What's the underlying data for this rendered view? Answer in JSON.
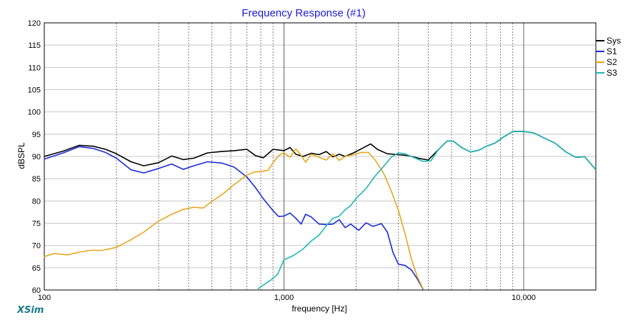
{
  "brand": "XSim",
  "chart_data": {
    "type": "line",
    "title": "Frequency Response (#1)",
    "xlabel": "frequency [Hz]",
    "ylabel": "dBSPL",
    "xscale": "log",
    "xlim": [
      100,
      20000
    ],
    "ylim": [
      60,
      120
    ],
    "yticks": [
      60,
      65,
      70,
      75,
      80,
      85,
      90,
      95,
      100,
      105,
      110,
      115,
      120
    ],
    "xtick_labels": [
      {
        "value": 100,
        "label": "100"
      },
      {
        "value": 1000,
        "label": "1,000"
      },
      {
        "value": 10000,
        "label": "10,000"
      }
    ],
    "grid": true,
    "legend_position": "right",
    "series": [
      {
        "name": "Sys",
        "color": "#000000",
        "points": [
          [
            100,
            90.0
          ],
          [
            120,
            91.2
          ],
          [
            140,
            92.5
          ],
          [
            160,
            92.3
          ],
          [
            180,
            91.6
          ],
          [
            200,
            90.6
          ],
          [
            230,
            88.8
          ],
          [
            260,
            87.9
          ],
          [
            300,
            88.6
          ],
          [
            340,
            90.1
          ],
          [
            380,
            89.3
          ],
          [
            420,
            89.6
          ],
          [
            480,
            90.8
          ],
          [
            550,
            91.1
          ],
          [
            620,
            91.3
          ],
          [
            700,
            91.6
          ],
          [
            760,
            90.2
          ],
          [
            820,
            89.7
          ],
          [
            900,
            91.6
          ],
          [
            1000,
            91.3
          ],
          [
            1060,
            92.0
          ],
          [
            1120,
            90.5
          ],
          [
            1200,
            90.0
          ],
          [
            1300,
            90.7
          ],
          [
            1400,
            90.4
          ],
          [
            1500,
            91.1
          ],
          [
            1600,
            89.9
          ],
          [
            1700,
            90.5
          ],
          [
            1800,
            90.0
          ],
          [
            1950,
            90.8
          ],
          [
            2100,
            91.7
          ],
          [
            2300,
            92.8
          ],
          [
            2450,
            91.6
          ],
          [
            2700,
            90.6
          ],
          [
            3000,
            90.4
          ],
          [
            3300,
            90.2
          ],
          [
            3700,
            89.5
          ],
          [
            4000,
            89.2
          ],
          [
            4400,
            91.5
          ],
          [
            4800,
            93.5
          ],
          [
            5100,
            93.4
          ],
          [
            5500,
            92.0
          ],
          [
            6000,
            91.0
          ],
          [
            6500,
            91.4
          ],
          [
            7000,
            92.3
          ],
          [
            7600,
            93.0
          ],
          [
            8200,
            94.3
          ],
          [
            9000,
            95.6
          ],
          [
            10000,
            95.6
          ],
          [
            11000,
            95.3
          ],
          [
            12000,
            94.3
          ],
          [
            13500,
            93.0
          ],
          [
            15000,
            91.0
          ],
          [
            16500,
            89.8
          ],
          [
            18000,
            89.9
          ],
          [
            20000,
            87.0
          ]
        ]
      },
      {
        "name": "S1",
        "color": "#1a2ad8",
        "points": [
          [
            100,
            89.4
          ],
          [
            120,
            90.8
          ],
          [
            140,
            92.2
          ],
          [
            160,
            91.8
          ],
          [
            180,
            90.9
          ],
          [
            200,
            89.6
          ],
          [
            230,
            87.0
          ],
          [
            260,
            86.3
          ],
          [
            300,
            87.3
          ],
          [
            340,
            88.3
          ],
          [
            380,
            87.1
          ],
          [
            420,
            87.9
          ],
          [
            480,
            88.8
          ],
          [
            550,
            88.5
          ],
          [
            620,
            87.6
          ],
          [
            700,
            85.4
          ],
          [
            760,
            83.0
          ],
          [
            820,
            80.5
          ],
          [
            900,
            77.8
          ],
          [
            950,
            76.5
          ],
          [
            1000,
            76.6
          ],
          [
            1060,
            77.3
          ],
          [
            1120,
            76.1
          ],
          [
            1180,
            74.8
          ],
          [
            1230,
            77.0
          ],
          [
            1300,
            76.4
          ],
          [
            1400,
            74.8
          ],
          [
            1500,
            74.7
          ],
          [
            1600,
            74.8
          ],
          [
            1700,
            75.8
          ],
          [
            1800,
            74.0
          ],
          [
            1900,
            74.8
          ],
          [
            2050,
            73.4
          ],
          [
            2200,
            75.1
          ],
          [
            2350,
            74.3
          ],
          [
            2550,
            74.9
          ],
          [
            2700,
            73.0
          ],
          [
            2850,
            68.4
          ],
          [
            3000,
            65.8
          ],
          [
            3200,
            65.5
          ],
          [
            3400,
            64.5
          ],
          [
            3600,
            62.5
          ],
          [
            3800,
            60.2
          ]
        ]
      },
      {
        "name": "S2",
        "color": "#e6a71c",
        "points": [
          [
            100,
            67.5
          ],
          [
            110,
            68.2
          ],
          [
            125,
            67.9
          ],
          [
            140,
            68.5
          ],
          [
            155,
            68.9
          ],
          [
            175,
            68.9
          ],
          [
            200,
            69.6
          ],
          [
            230,
            71.3
          ],
          [
            260,
            73.0
          ],
          [
            300,
            75.5
          ],
          [
            340,
            77.0
          ],
          [
            380,
            78.1
          ],
          [
            420,
            78.6
          ],
          [
            460,
            78.4
          ],
          [
            500,
            79.9
          ],
          [
            560,
            81.7
          ],
          [
            620,
            83.7
          ],
          [
            700,
            85.8
          ],
          [
            750,
            86.5
          ],
          [
            800,
            86.6
          ],
          [
            860,
            86.9
          ],
          [
            900,
            88.6
          ],
          [
            950,
            90.2
          ],
          [
            1000,
            90.8
          ],
          [
            1060,
            89.8
          ],
          [
            1120,
            91.7
          ],
          [
            1180,
            90.2
          ],
          [
            1230,
            88.7
          ],
          [
            1300,
            90.5
          ],
          [
            1400,
            89.8
          ],
          [
            1500,
            89.2
          ],
          [
            1600,
            90.6
          ],
          [
            1700,
            89.1
          ],
          [
            1800,
            90.0
          ],
          [
            1950,
            90.4
          ],
          [
            2100,
            90.9
          ],
          [
            2250,
            90.9
          ],
          [
            2400,
            89.2
          ],
          [
            2600,
            86.3
          ],
          [
            2800,
            82.3
          ],
          [
            3000,
            77.9
          ],
          [
            3200,
            72.6
          ],
          [
            3400,
            67.0
          ],
          [
            3600,
            63.0
          ],
          [
            3800,
            60.3
          ]
        ]
      },
      {
        "name": "S3",
        "color": "#1eb8b8",
        "points": [
          [
            780,
            60.3
          ],
          [
            820,
            61.1
          ],
          [
            880,
            62.2
          ],
          [
            940,
            63.5
          ],
          [
            1000,
            66.8
          ],
          [
            1050,
            67.3
          ],
          [
            1100,
            67.8
          ],
          [
            1200,
            69.2
          ],
          [
            1300,
            71.0
          ],
          [
            1400,
            72.3
          ],
          [
            1500,
            74.4
          ],
          [
            1600,
            76.1
          ],
          [
            1700,
            76.6
          ],
          [
            1800,
            78.0
          ],
          [
            1900,
            79.0
          ],
          [
            2000,
            80.6
          ],
          [
            2200,
            82.8
          ],
          [
            2400,
            85.6
          ],
          [
            2600,
            87.7
          ],
          [
            2800,
            89.8
          ],
          [
            3000,
            90.8
          ],
          [
            3200,
            90.6
          ],
          [
            3500,
            89.7
          ],
          [
            3800,
            88.9
          ],
          [
            4100,
            89.0
          ],
          [
            4400,
            91.5
          ],
          [
            4800,
            93.5
          ],
          [
            5100,
            93.4
          ],
          [
            5500,
            92.0
          ],
          [
            6000,
            91.0
          ],
          [
            6500,
            91.4
          ],
          [
            7000,
            92.3
          ],
          [
            7600,
            93.0
          ],
          [
            8200,
            94.3
          ],
          [
            9000,
            95.6
          ],
          [
            10000,
            95.6
          ],
          [
            11000,
            95.3
          ],
          [
            12000,
            94.3
          ],
          [
            13500,
            93.0
          ],
          [
            15000,
            91.0
          ],
          [
            16500,
            89.8
          ],
          [
            18000,
            89.9
          ],
          [
            20000,
            87.0
          ]
        ]
      }
    ]
  }
}
